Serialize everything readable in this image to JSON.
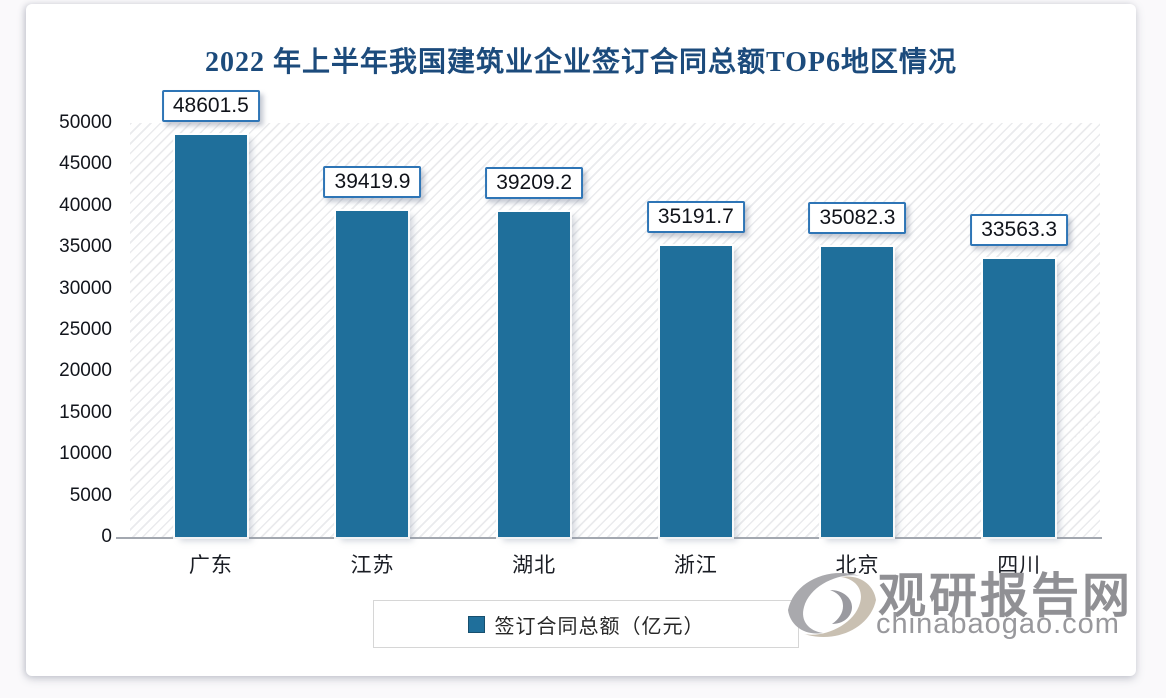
{
  "chart_data": {
    "type": "bar",
    "title": "2022 年上半年我国建筑业企业签订合同总额TOP6地区情况",
    "categories": [
      "广东",
      "江苏",
      "湖北",
      "浙江",
      "北京",
      "四川"
    ],
    "values": [
      48601.5,
      39419.9,
      39209.2,
      35191.7,
      35082.3,
      33563.3
    ],
    "data_labels": [
      "48601.5",
      "39419.9",
      "39209.2",
      "35191.7",
      "35082.3",
      "33563.3"
    ],
    "series_name": "签订合同总额（亿元）",
    "ylim": [
      0,
      50000
    ],
    "yticks": [
      50000,
      45000,
      40000,
      35000,
      30000,
      25000,
      20000,
      15000,
      10000,
      5000,
      0
    ],
    "grid": false,
    "legend_position": "bottom",
    "bar_color": "#1f6f9b",
    "plot_background": "diagonal-hatch"
  },
  "legend": {
    "label": "签订合同总额（亿元）"
  },
  "watermark": {
    "site_name": "观研报告网",
    "site_url": "chinabaogao.com"
  },
  "colors": {
    "bar": "#1f6f9b",
    "title_text": "#1c4b7c",
    "label_box_border": "#2e75b6",
    "axis_text": "#12151c",
    "axis_line": "#a3a8b0",
    "watermark_text": "#909094",
    "card_background": "#ffffff"
  }
}
